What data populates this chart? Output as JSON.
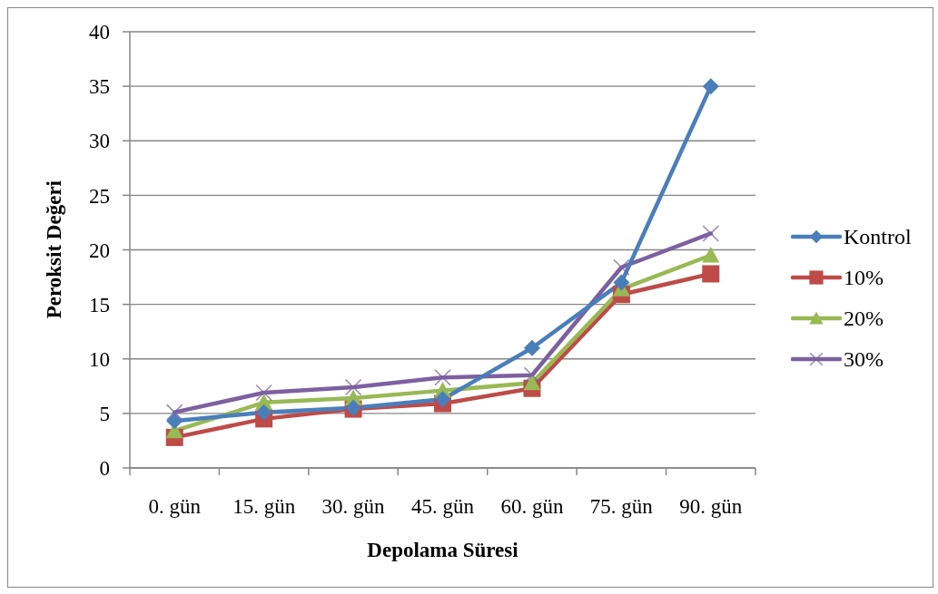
{
  "chart_data": {
    "type": "line",
    "xlabel": "Depolama Süresi",
    "ylabel": "Peroksit Değeri",
    "categories": [
      "0. gün",
      "15. gün",
      "30. gün",
      "45. gün",
      "60. gün",
      "75. gün",
      "90. gün"
    ],
    "series": [
      {
        "name": "Kontrol",
        "color": "#4a7ebb",
        "marker": "diamond",
        "values": [
          4.3,
          5.1,
          5.5,
          6.3,
          11.0,
          17.0,
          35.0
        ]
      },
      {
        "name": "10%",
        "color": "#be4b48",
        "marker": "square",
        "values": [
          2.8,
          4.5,
          5.4,
          5.9,
          7.3,
          15.9,
          17.8
        ]
      },
      {
        "name": "20%",
        "color": "#98b954",
        "marker": "triangle",
        "values": [
          3.4,
          6.0,
          6.4,
          7.1,
          7.8,
          16.4,
          19.5
        ]
      },
      {
        "name": "30%",
        "color": "#7d60a0",
        "marker": "cross",
        "values": [
          5.1,
          6.9,
          7.4,
          8.3,
          8.5,
          18.4,
          21.5
        ]
      }
    ],
    "ylim": [
      0,
      40
    ],
    "yticks": [
      0,
      5,
      10,
      15,
      20,
      25,
      30,
      35,
      40
    ],
    "grid": "y",
    "legend": "right"
  }
}
